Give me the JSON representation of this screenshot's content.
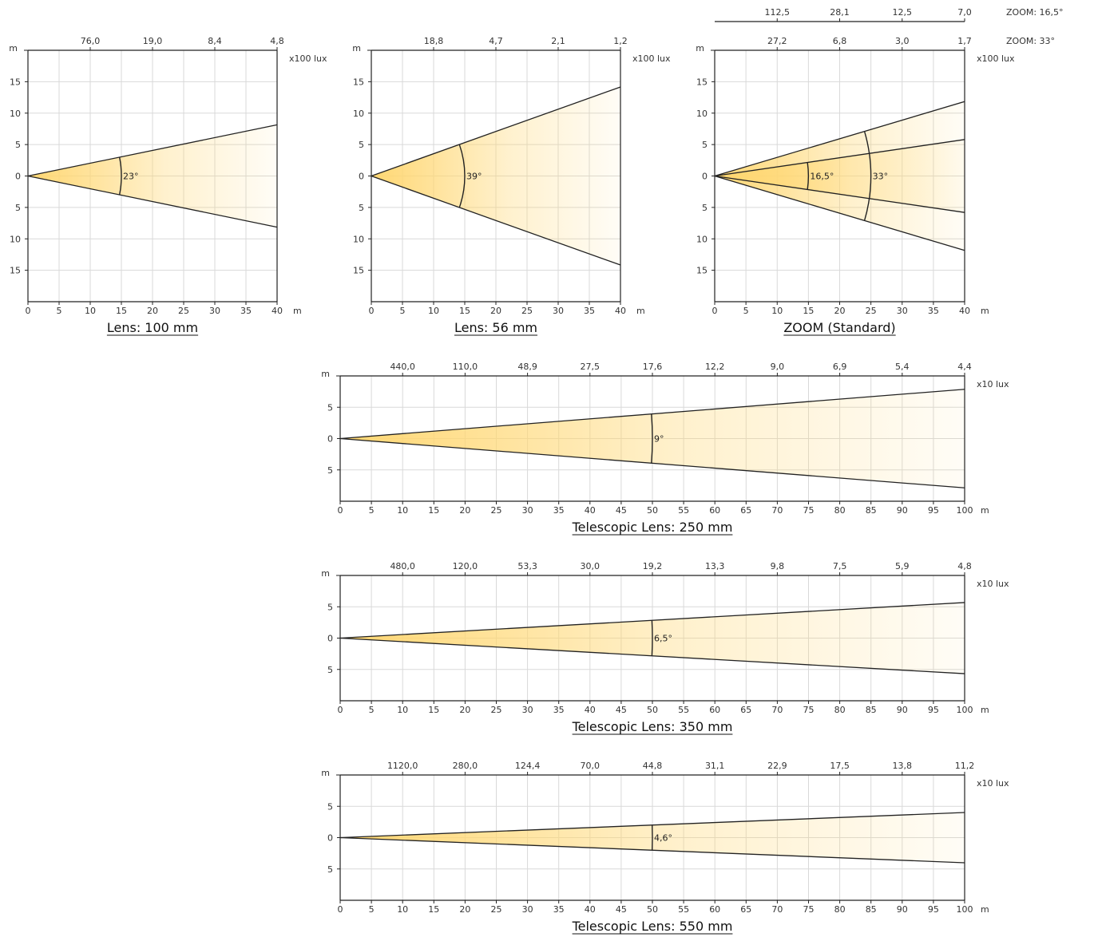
{
  "chart_data": [
    {
      "type": "beam-angle-diagram",
      "title": "Lens: 100 mm",
      "x_unit": "m",
      "y_unit": "m",
      "xlim": [
        0,
        40
      ],
      "ylim": [
        -20,
        20
      ],
      "x_ticks": [
        "0",
        "5",
        "10",
        "15",
        "20",
        "25",
        "30",
        "35",
        "40"
      ],
      "y_ticks": [
        "15",
        "10",
        "5",
        "0",
        "5",
        "10",
        "15"
      ],
      "lux_unit": "x100 lux",
      "lux_scales": [
        {
          "label": "",
          "positions": [
            10,
            20,
            30,
            40
          ],
          "values": [
            "76,0",
            "19,0",
            "8,4",
            "4,8"
          ]
        }
      ],
      "beams": [
        {
          "angle_deg": 23,
          "label": "23°",
          "arc_distance": 15
        }
      ]
    },
    {
      "type": "beam-angle-diagram",
      "title": "Lens: 56 mm",
      "x_unit": "m",
      "y_unit": "m",
      "xlim": [
        0,
        40
      ],
      "ylim": [
        -20,
        20
      ],
      "x_ticks": [
        "0",
        "5",
        "10",
        "15",
        "20",
        "25",
        "30",
        "35",
        "40"
      ],
      "y_ticks": [
        "15",
        "10",
        "5",
        "0",
        "5",
        "10",
        "15"
      ],
      "lux_unit": "x100 lux",
      "lux_scales": [
        {
          "label": "",
          "positions": [
            10,
            20,
            30,
            40
          ],
          "values": [
            "18,8",
            "4,7",
            "2,1",
            "1,2"
          ]
        }
      ],
      "beams": [
        {
          "angle_deg": 39,
          "label": "39°",
          "arc_distance": 15
        }
      ]
    },
    {
      "type": "beam-angle-diagram",
      "title": "ZOOM (Standard)",
      "x_unit": "m",
      "y_unit": "m",
      "xlim": [
        0,
        40
      ],
      "ylim": [
        -20,
        20
      ],
      "x_ticks": [
        "0",
        "5",
        "10",
        "15",
        "20",
        "25",
        "30",
        "35",
        "40"
      ],
      "y_ticks": [
        "15",
        "10",
        "5",
        "0",
        "5",
        "10",
        "15"
      ],
      "lux_unit": "x100 lux",
      "lux_scales": [
        {
          "label": "ZOOM: 33°",
          "positions": [
            10,
            20,
            30,
            40
          ],
          "values": [
            "27,2",
            "6,8",
            "3,0",
            "1,7"
          ]
        },
        {
          "label": "ZOOM: 16,5°",
          "positions": [
            10,
            20,
            30,
            40
          ],
          "values": [
            "112,5",
            "28,1",
            "12,5",
            "7,0"
          ]
        }
      ],
      "beams": [
        {
          "angle_deg": 33,
          "label": "33°",
          "arc_distance": 25
        },
        {
          "angle_deg": 16.5,
          "label": "16,5°",
          "arc_distance": 15
        }
      ]
    },
    {
      "type": "beam-angle-diagram",
      "title": "Telescopic Lens: 250 mm",
      "x_unit": "m",
      "y_unit": "m",
      "xlim": [
        0,
        100
      ],
      "ylim": [
        -10,
        10
      ],
      "x_ticks": [
        "0",
        "5",
        "10",
        "15",
        "20",
        "25",
        "30",
        "35",
        "40",
        "45",
        "50",
        "55",
        "60",
        "65",
        "70",
        "75",
        "80",
        "85",
        "90",
        "95",
        "100"
      ],
      "y_ticks": [
        "5",
        "0",
        "5"
      ],
      "lux_unit": "x10 lux",
      "lux_scales": [
        {
          "label": "",
          "positions": [
            10,
            20,
            30,
            40,
            50,
            60,
            70,
            80,
            90,
            100
          ],
          "values": [
            "440,0",
            "110,0",
            "48,9",
            "27,5",
            "17,6",
            "12,2",
            "9,0",
            "6,9",
            "5,4",
            "4,4"
          ]
        }
      ],
      "beams": [
        {
          "angle_deg": 9,
          "label": "9°",
          "arc_distance": 50
        }
      ]
    },
    {
      "type": "beam-angle-diagram",
      "title": "Telescopic Lens: 350 mm",
      "x_unit": "m",
      "y_unit": "m",
      "xlim": [
        0,
        100
      ],
      "ylim": [
        -10,
        10
      ],
      "x_ticks": [
        "0",
        "5",
        "10",
        "15",
        "20",
        "25",
        "30",
        "35",
        "40",
        "45",
        "50",
        "55",
        "60",
        "65",
        "70",
        "75",
        "80",
        "85",
        "90",
        "95",
        "100"
      ],
      "y_ticks": [
        "5",
        "0",
        "5"
      ],
      "lux_unit": "x10 lux",
      "lux_scales": [
        {
          "label": "",
          "positions": [
            10,
            20,
            30,
            40,
            50,
            60,
            70,
            80,
            90,
            100
          ],
          "values": [
            "480,0",
            "120,0",
            "53,3",
            "30,0",
            "19,2",
            "13,3",
            "9,8",
            "7,5",
            "5,9",
            "4,8"
          ]
        }
      ],
      "beams": [
        {
          "angle_deg": 6.5,
          "label": "6,5°",
          "arc_distance": 50
        }
      ]
    },
    {
      "type": "beam-angle-diagram",
      "title": "Telescopic Lens: 550 mm",
      "x_unit": "m",
      "y_unit": "m",
      "xlim": [
        0,
        100
      ],
      "ylim": [
        -10,
        10
      ],
      "x_ticks": [
        "0",
        "5",
        "10",
        "15",
        "20",
        "25",
        "30",
        "35",
        "40",
        "45",
        "50",
        "55",
        "60",
        "65",
        "70",
        "75",
        "80",
        "85",
        "90",
        "95",
        "100"
      ],
      "y_ticks": [
        "5",
        "0",
        "5"
      ],
      "lux_unit": "x10 lux",
      "lux_scales": [
        {
          "label": "",
          "positions": [
            10,
            20,
            30,
            40,
            50,
            60,
            70,
            80,
            90,
            100
          ],
          "values": [
            "1120,0",
            "280,0",
            "124,4",
            "70,0",
            "44,8",
            "31,1",
            "22,9",
            "17,5",
            "13,8",
            "11,2"
          ]
        }
      ],
      "beams": [
        {
          "angle_deg": 4.6,
          "label": "4,6°",
          "arc_distance": 50
        }
      ]
    }
  ],
  "colors": {
    "beam": "#FFD772",
    "beam_fade": "#FFFFFF",
    "grid": "#D9D9D9",
    "axis": "#222222"
  }
}
